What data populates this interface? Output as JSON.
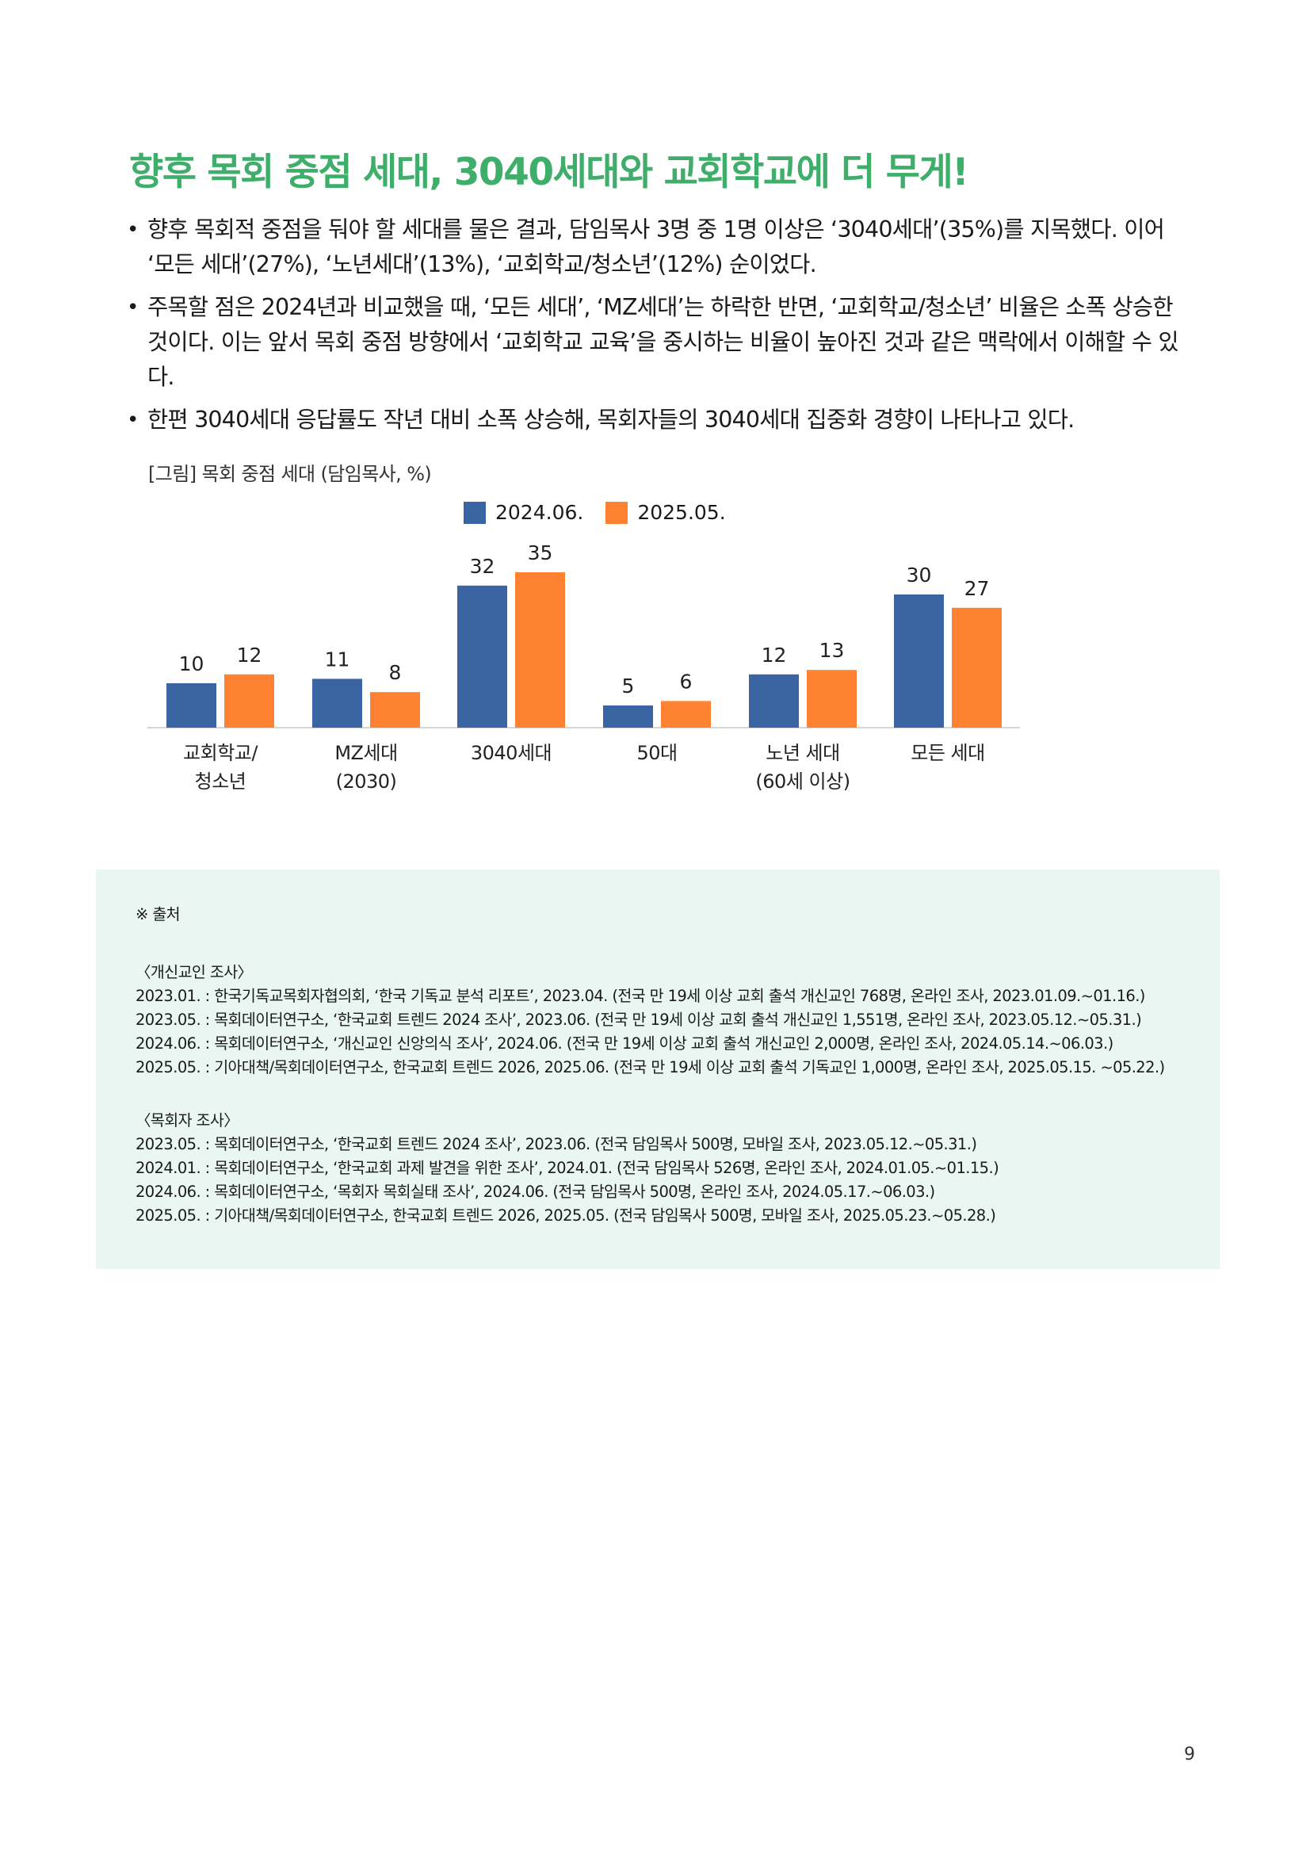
{
  "title": "향후 목회 중점 세대, 3040세대와 교회학교에 더 무게!",
  "bullets": [
    "향후 목회적 중점을 둬야 할 세대를 물은 결과, 담임목사 3명 중 1명 이상은 ‘3040세대’(35%)를 지목했다. 이어 ‘모든 세대’(27%), ‘노년세대’(13%), ‘교회학교/청소년’(12%) 순이었다.",
    "주목할 점은 2024년과 비교했을 때, ‘모든 세대’, ‘MZ세대’는 하락한 반면, ‘교회학교/청소년’ 비율은 소폭 상승한 것이다. 이는 앞서 목회 중점 방향에서 ‘교회학교 교육’을 중시하는 비율이 높아진 것과 같은 맥락에서 이해할 수 있다.",
    "한편 3040세대 응답률도 작년 대비 소폭 상승해, 목회자들의 3040세대 집중화 경향이 나타나고 있다."
  ],
  "figure_caption": "[그림] 목회 중점 세대 (담임목사, %)",
  "chart_data": {
    "type": "bar",
    "categories": [
      [
        "교회학교/",
        "청소년"
      ],
      [
        "MZ세대",
        "(2030)"
      ],
      [
        "3040세대"
      ],
      [
        "50대"
      ],
      [
        "노년 세대",
        "(60세 이상)"
      ],
      [
        "모든 세대"
      ]
    ],
    "series": [
      {
        "name": "2024.06.",
        "color": "#3b64a3",
        "values": [
          10,
          11,
          32,
          5,
          12,
          30
        ]
      },
      {
        "name": "2025.05.",
        "color": "#ff8132",
        "values": [
          12,
          8,
          35,
          6,
          13,
          27
        ]
      }
    ],
    "ylim": [
      0,
      35
    ],
    "legend": "top",
    "grid": false,
    "data_labels": true
  },
  "sources": {
    "heading": "※ 출처",
    "groups": [
      {
        "title": "〈개신교인 조사〉",
        "lines": [
          "2023.01. : 한국기독교목회자협의회, ‘한국 기독교 분석 리포트’, 2023.04. (전국 만 19세 이상 교회 출석 개신교인 768명, 온라인 조사, 2023.01.09.~01.16.)",
          "2023.05. : 목회데이터연구소, ‘한국교회 트렌드 2024 조사’, 2023.06. (전국 만 19세 이상 교회 출석 개신교인 1,551명, 온라인 조사, 2023.05.12.~05.31.)",
          "2024.06. : 목회데이터연구소, ‘개신교인 신앙의식 조사’, 2024.06. (전국 만 19세 이상 교회 출석 개신교인 2,000명, 온라인 조사, 2024.05.14.~06.03.)",
          "2025.05. : 기아대책/목회데이터연구소, 한국교회 트렌드 2026, 2025.06. (전국 만 19세 이상 교회 출석 기독교인 1,000명, 온라인 조사, 2025.05.15. ~05.22.)"
        ]
      },
      {
        "title": "〈목회자 조사〉",
        "lines": [
          "2023.05. : 목회데이터연구소, ‘한국교회 트렌드 2024 조사’, 2023.06. (전국 담임목사 500명, 모바일 조사, 2023.05.12.~05.31.)",
          "2024.01. : 목회데이터연구소, ‘한국교회 과제 발견을 위한 조사’, 2024.01. (전국 담임목사 526명, 온라인 조사, 2024.01.05.~01.15.)",
          "2024.06. : 목회데이터연구소, ‘목회자 목회실태 조사’, 2024.06. (전국 담임목사 500명, 온라인 조사, 2024.05.17.~06.03.)",
          "2025.05. : 기아대책/목회데이터연구소, 한국교회 트렌드 2026, 2025.05. (전국 담임목사 500명, 모바일 조사, 2025.05.23.~05.28.)"
        ]
      }
    ]
  },
  "page_number": "9"
}
